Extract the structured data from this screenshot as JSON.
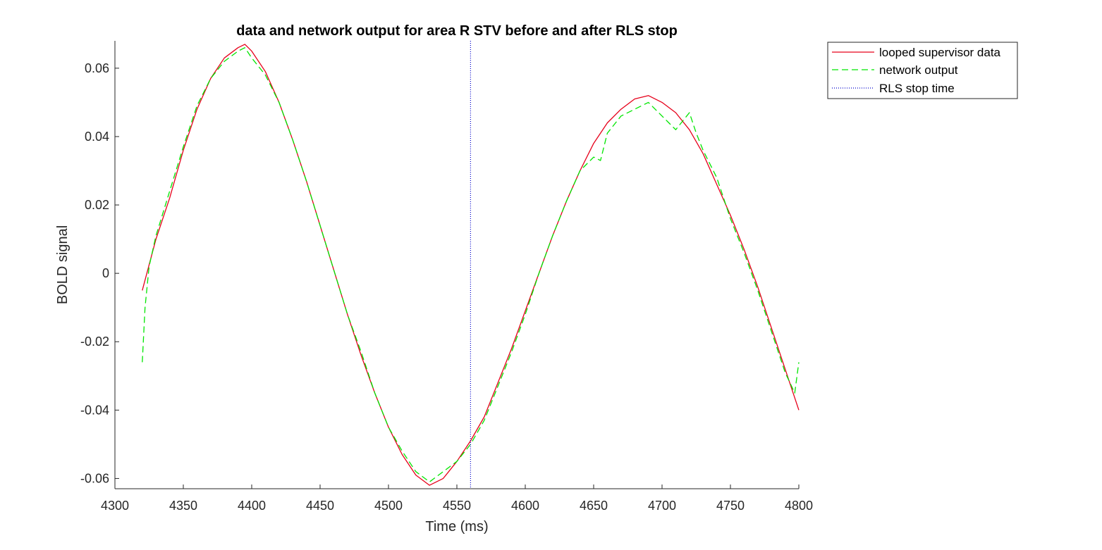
{
  "chart_data": {
    "type": "line",
    "title": "data and network output for area R STV before and after RLS stop",
    "xlabel": "Time (ms)",
    "ylabel": "BOLD signal",
    "xlim": [
      4300,
      4800
    ],
    "ylim": [
      -0.063,
      0.068
    ],
    "xticks": [
      4300,
      4350,
      4400,
      4450,
      4500,
      4550,
      4600,
      4650,
      4700,
      4750,
      4800
    ],
    "yticks": [
      -0.06,
      -0.04,
      -0.02,
      0,
      0.02,
      0.04,
      0.06
    ],
    "xtick_labels": [
      "4300",
      "4350",
      "4400",
      "4450",
      "4500",
      "4550",
      "4600",
      "4650",
      "4700",
      "4750",
      "4800"
    ],
    "ytick_labels": [
      "-0.06",
      "-0.04",
      "-0.02",
      "0",
      "0.02",
      "0.04",
      "0.06"
    ],
    "grid": false,
    "legend_position": "top-right-outside",
    "series": [
      {
        "name": "looped supervisor data",
        "color": "#e6001a",
        "style": "solid",
        "x": [
          4320,
          4330,
          4340,
          4350,
          4360,
          4370,
          4380,
          4390,
          4395,
          4400,
          4410,
          4420,
          4430,
          4440,
          4450,
          4460,
          4470,
          4480,
          4490,
          4500,
          4510,
          4520,
          4530,
          4540,
          4550,
          4560,
          4570,
          4580,
          4590,
          4600,
          4610,
          4620,
          4630,
          4640,
          4650,
          4660,
          4670,
          4680,
          4690,
          4700,
          4710,
          4720,
          4730,
          4740,
          4750,
          4760,
          4770,
          4780,
          4790,
          4800
        ],
        "y": [
          -0.005,
          0.01,
          0.022,
          0.036,
          0.048,
          0.057,
          0.063,
          0.066,
          0.067,
          0.065,
          0.059,
          0.05,
          0.039,
          0.027,
          0.014,
          0.001,
          -0.012,
          -0.024,
          -0.035,
          -0.045,
          -0.053,
          -0.059,
          -0.062,
          -0.06,
          -0.055,
          -0.049,
          -0.042,
          -0.032,
          -0.022,
          -0.011,
          0.0,
          0.011,
          0.021,
          0.03,
          0.038,
          0.044,
          0.048,
          0.051,
          0.052,
          0.05,
          0.047,
          0.042,
          0.035,
          0.026,
          0.017,
          0.007,
          -0.004,
          -0.016,
          -0.028,
          -0.04
        ]
      },
      {
        "name": "network output",
        "color": "#00e600",
        "style": "dashed",
        "x": [
          4320,
          4322,
          4325,
          4330,
          4340,
          4350,
          4360,
          4370,
          4380,
          4390,
          4395,
          4400,
          4410,
          4420,
          4430,
          4440,
          4450,
          4460,
          4470,
          4480,
          4490,
          4500,
          4510,
          4520,
          4530,
          4540,
          4550,
          4560,
          4570,
          4580,
          4590,
          4600,
          4610,
          4620,
          4630,
          4640,
          4650,
          4655,
          4660,
          4670,
          4680,
          4690,
          4700,
          4705,
          4710,
          4720,
          4725,
          4730,
          4740,
          4750,
          4760,
          4770,
          4780,
          4790,
          4797,
          4800
        ],
        "y": [
          -0.026,
          -0.01,
          0.002,
          0.011,
          0.024,
          0.037,
          0.049,
          0.057,
          0.062,
          0.065,
          0.066,
          0.063,
          0.058,
          0.05,
          0.039,
          0.027,
          0.014,
          0.001,
          -0.012,
          -0.023,
          -0.035,
          -0.045,
          -0.052,
          -0.058,
          -0.061,
          -0.058,
          -0.055,
          -0.05,
          -0.043,
          -0.033,
          -0.023,
          -0.012,
          0.0,
          0.011,
          0.021,
          0.03,
          0.034,
          0.033,
          0.041,
          0.046,
          0.048,
          0.05,
          0.046,
          0.044,
          0.042,
          0.047,
          0.041,
          0.036,
          0.028,
          0.016,
          0.006,
          -0.005,
          -0.017,
          -0.029,
          -0.035,
          -0.026
        ]
      },
      {
        "name": "RLS stop time",
        "color": "#0000cc",
        "style": "dotted",
        "vertical_x": 4560
      }
    ]
  }
}
